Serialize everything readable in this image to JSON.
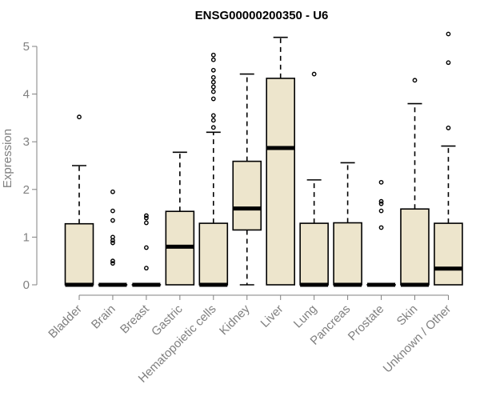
{
  "chart_data": {
    "type": "boxplot",
    "title": "ENSG00000200350 - U6",
    "ylabel": "Expression",
    "xlabel": "",
    "ylim": [
      0,
      5.3
    ],
    "yticks": [
      "0",
      "1",
      "2",
      "3",
      "4",
      "5"
    ],
    "grid": false,
    "legend": "none",
    "colors": {
      "box_fill": "#ede5cc",
      "box_stroke": "#000000",
      "axis": "#808080"
    },
    "categories": [
      "Bladder",
      "Brain",
      "Breast",
      "Gastric",
      "Hematopoietic cells",
      "Kidney",
      "Liver",
      "Lung",
      "Pancreas",
      "Prostate",
      "Skin",
      "Unknown / Other"
    ],
    "boxes": [
      {
        "category": "Bladder",
        "whisker_low": 0,
        "q1": 0,
        "median": 0,
        "q3": 1.28,
        "whisker_high": 2.5,
        "outliers": [
          3.52
        ]
      },
      {
        "category": "Brain",
        "whisker_low": 0,
        "q1": 0,
        "median": 0,
        "q3": 0,
        "whisker_high": 0,
        "outliers": [
          0.45,
          0.5,
          0.88,
          0.93,
          1.0,
          1.35,
          1.55,
          1.95
        ]
      },
      {
        "category": "Breast",
        "whisker_low": 0,
        "q1": 0,
        "median": 0,
        "q3": 0,
        "whisker_high": 0,
        "outliers": [
          0.35,
          0.78,
          1.3,
          1.4,
          1.45
        ]
      },
      {
        "category": "Gastric",
        "whisker_low": 0,
        "q1": 0,
        "median": 0.8,
        "q3": 1.54,
        "whisker_high": 2.78,
        "outliers": []
      },
      {
        "category": "Hematopoietic cells",
        "whisker_low": 0,
        "q1": 0,
        "median": 0,
        "q3": 1.29,
        "whisker_high": 3.2,
        "outliers": [
          3.3,
          3.45,
          3.55,
          3.9,
          4.05,
          4.15,
          4.25,
          4.35,
          4.5,
          4.72,
          4.82
        ]
      },
      {
        "category": "Kidney",
        "whisker_low": 0,
        "q1": 1.15,
        "median": 1.6,
        "q3": 2.59,
        "whisker_high": 4.42,
        "outliers": []
      },
      {
        "category": "Liver",
        "whisker_low": 0,
        "q1": 0,
        "median": 2.87,
        "q3": 4.33,
        "whisker_high": 5.19,
        "outliers": []
      },
      {
        "category": "Lung",
        "whisker_low": 0,
        "q1": 0,
        "median": 0,
        "q3": 1.29,
        "whisker_high": 2.2,
        "outliers": [
          4.42
        ]
      },
      {
        "category": "Pancreas",
        "whisker_low": 0,
        "q1": 0,
        "median": 0,
        "q3": 1.3,
        "whisker_high": 2.56,
        "outliers": []
      },
      {
        "category": "Prostate",
        "whisker_low": 0,
        "q1": 0,
        "median": 0,
        "q3": 0,
        "whisker_high": 0,
        "outliers": [
          1.2,
          1.55,
          1.7,
          1.75,
          2.15
        ]
      },
      {
        "category": "Skin",
        "whisker_low": 0,
        "q1": 0,
        "median": 0,
        "q3": 1.59,
        "whisker_high": 3.8,
        "outliers": [
          4.29
        ]
      },
      {
        "category": "Unknown / Other",
        "whisker_low": 0,
        "q1": 0,
        "median": 0.34,
        "q3": 1.29,
        "whisker_high": 2.91,
        "outliers": [
          3.29,
          4.66,
          5.26
        ]
      }
    ]
  }
}
